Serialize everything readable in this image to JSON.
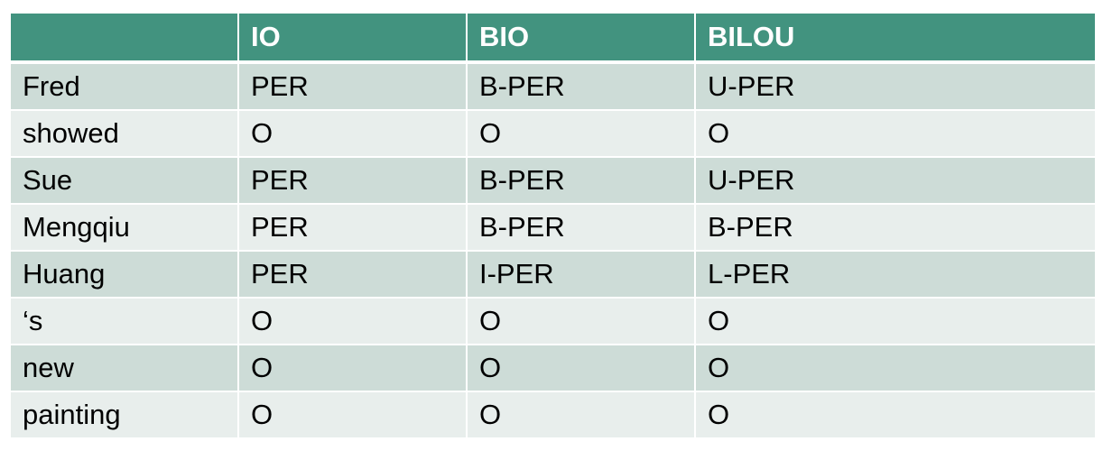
{
  "table": {
    "headers": [
      "",
      "IO",
      "BIO",
      "BILOU"
    ],
    "rows": [
      [
        "Fred",
        "PER",
        "B-PER",
        "U-PER"
      ],
      [
        "showed",
        "O",
        "O",
        "O"
      ],
      [
        "Sue",
        "PER",
        "B-PER",
        "U-PER"
      ],
      [
        "Mengqiu",
        "PER",
        "B-PER",
        "B-PER"
      ],
      [
        "Huang",
        "PER",
        "I-PER",
        "L-PER"
      ],
      [
        "‘s",
        "O",
        "O",
        "O"
      ],
      [
        "new",
        "O",
        "O",
        "O"
      ],
      [
        "painting",
        "O",
        "O",
        "O"
      ]
    ]
  },
  "colors": {
    "header_bg": "#42937f",
    "row_odd_bg": "#cddcd7",
    "row_even_bg": "#e8eeec"
  }
}
